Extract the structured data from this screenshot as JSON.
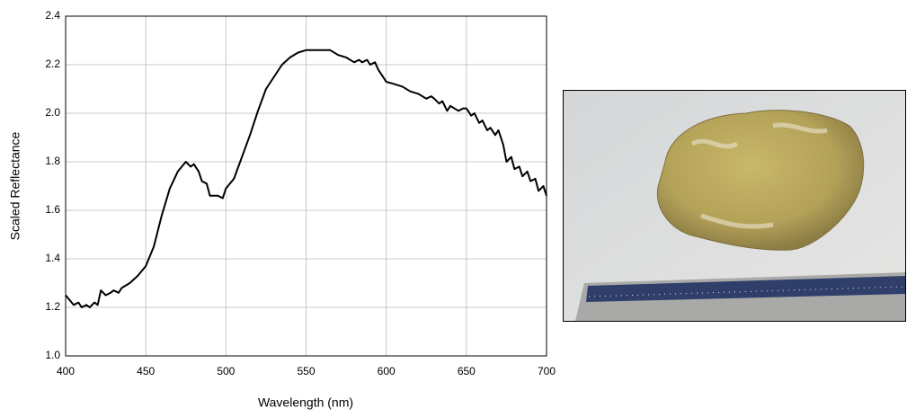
{
  "chart_data": {
    "type": "line",
    "x_label": "Wavelength (nm)",
    "y_label": "Scaled Reflectance",
    "xlim": [
      400,
      700
    ],
    "ylim": [
      1.0,
      2.4
    ],
    "xticks": [
      400,
      450,
      500,
      550,
      600,
      650,
      700
    ],
    "yticks": [
      {
        "value": 1.0,
        "label": "1.0"
      },
      1.2,
      1.4,
      1.6,
      1.8,
      {
        "value": 2.0,
        "label": "2.0"
      },
      2.2,
      2.4
    ],
    "grid": true,
    "series": [
      {
        "color": "#000000",
        "x": [
          400,
          405,
          408,
          410,
          413,
          415,
          418,
          420,
          422,
          425,
          428,
          430,
          433,
          435,
          440,
          445,
          450,
          455,
          460,
          465,
          470,
          475,
          478,
          480,
          483,
          485,
          488,
          490,
          495,
          498,
          500,
          505,
          510,
          515,
          520,
          525,
          530,
          535,
          540,
          545,
          550,
          555,
          560,
          565,
          570,
          575,
          580,
          583,
          585,
          588,
          590,
          593,
          595,
          600,
          605,
          610,
          615,
          620,
          625,
          628,
          630,
          633,
          635,
          638,
          640,
          645,
          648,
          650,
          653,
          655,
          658,
          660,
          663,
          665,
          668,
          670,
          673,
          675,
          678,
          680,
          683,
          685,
          688,
          690,
          693,
          695,
          698,
          700
        ],
        "values": [
          1.25,
          1.21,
          1.22,
          1.2,
          1.21,
          1.2,
          1.22,
          1.21,
          1.27,
          1.25,
          1.26,
          1.27,
          1.26,
          1.28,
          1.3,
          1.33,
          1.37,
          1.45,
          1.58,
          1.69,
          1.76,
          1.8,
          1.78,
          1.79,
          1.76,
          1.72,
          1.71,
          1.66,
          1.66,
          1.65,
          1.69,
          1.73,
          1.82,
          1.91,
          2.01,
          2.1,
          2.15,
          2.2,
          2.23,
          2.25,
          2.26,
          2.26,
          2.26,
          2.26,
          2.24,
          2.23,
          2.21,
          2.22,
          2.21,
          2.22,
          2.2,
          2.21,
          2.18,
          2.13,
          2.12,
          2.11,
          2.09,
          2.08,
          2.06,
          2.07,
          2.06,
          2.04,
          2.05,
          2.01,
          2.03,
          2.01,
          2.02,
          2.02,
          1.99,
          2.0,
          1.96,
          1.97,
          1.93,
          1.94,
          1.91,
          1.93,
          1.87,
          1.8,
          1.82,
          1.77,
          1.78,
          1.74,
          1.76,
          1.72,
          1.73,
          1.68,
          1.7,
          1.66
        ]
      }
    ]
  }
}
